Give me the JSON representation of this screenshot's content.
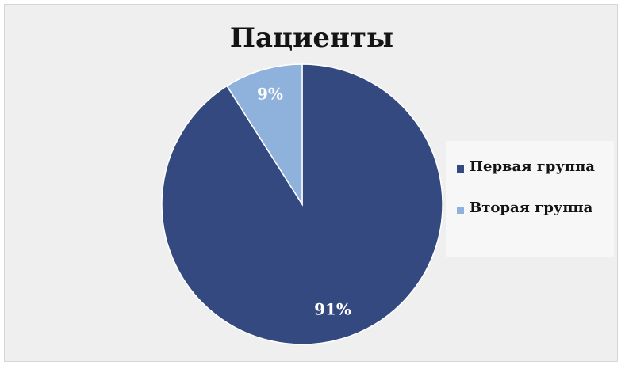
{
  "chart_data": {
    "type": "pie",
    "title": "Пациенты",
    "slices": [
      {
        "label": "Первая группа",
        "value": 91,
        "value_label": "91%",
        "color": "#34497f"
      },
      {
        "label": "Вторая группа",
        "value": 9,
        "value_label": "9%",
        "color": "#8fb2dc"
      }
    ],
    "legend": {
      "position": "right"
    },
    "colors": {
      "background": "#efefef",
      "slice_border": "#ffffff"
    }
  }
}
